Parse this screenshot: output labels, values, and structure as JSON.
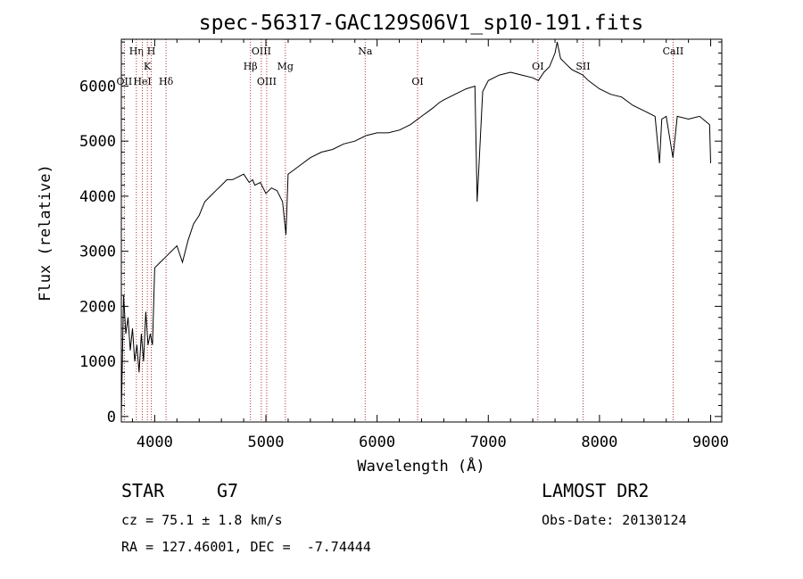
{
  "chart_data": {
    "type": "line",
    "title": "spec-56317-GAC129S06V1_sp10-191.fits",
    "xlabel": "Wavelength (Å)",
    "ylabel": "Flux (relative)",
    "xlim": [
      3700,
      9100
    ],
    "ylim": [
      -100,
      6850
    ],
    "xticks": [
      4000,
      5000,
      6000,
      7000,
      8000,
      9000
    ],
    "yticks": [
      0,
      1000,
      2000,
      3000,
      4000,
      5000,
      6000
    ],
    "grid": false,
    "series": [
      {
        "color": "#000000",
        "x": [
          3700,
          3720,
          3740,
          3760,
          3780,
          3800,
          3820,
          3840,
          3860,
          3880,
          3900,
          3920,
          3940,
          3960,
          3980,
          4000,
          4050,
          4100,
          4150,
          4200,
          4250,
          4300,
          4350,
          4400,
          4450,
          4500,
          4550,
          4600,
          4650,
          4700,
          4750,
          4800,
          4850,
          4880,
          4900,
          4950,
          5000,
          5050,
          5100,
          5150,
          5180,
          5200,
          5300,
          5400,
          5500,
          5600,
          5700,
          5800,
          5900,
          6000,
          6100,
          6200,
          6300,
          6400,
          6500,
          6560,
          6600,
          6700,
          6800,
          6880,
          6900,
          6950,
          7000,
          7100,
          7200,
          7300,
          7400,
          7450,
          7500,
          7550,
          7600,
          7620,
          7650,
          7700,
          7750,
          7800,
          7850,
          7900,
          8000,
          8100,
          8200,
          8300,
          8400,
          8500,
          8540,
          8560,
          8600,
          8660,
          8700,
          8800,
          8900,
          8990,
          9000
        ],
        "y": [
          0,
          2200,
          1500,
          1800,
          1200,
          1600,
          1000,
          1300,
          800,
          1500,
          1000,
          1900,
          1300,
          1500,
          1300,
          2700,
          2800,
          2900,
          3000,
          3100,
          2800,
          3200,
          3500,
          3650,
          3900,
          4000,
          4100,
          4200,
          4300,
          4300,
          4350,
          4400,
          4250,
          4300,
          4200,
          4250,
          4050,
          4150,
          4100,
          3900,
          3300,
          4400,
          4550,
          4700,
          4800,
          4850,
          4950,
          5000,
          5100,
          5150,
          5150,
          5200,
          5300,
          5450,
          5600,
          5700,
          5750,
          5850,
          5950,
          6000,
          3900,
          5900,
          6100,
          6200,
          6250,
          6200,
          6150,
          6100,
          6250,
          6350,
          6600,
          6800,
          6500,
          6400,
          6300,
          6250,
          6200,
          6100,
          5950,
          5850,
          5800,
          5650,
          5550,
          5450,
          4600,
          5400,
          5450,
          4700,
          5450,
          5400,
          5450,
          5300,
          4600
        ]
      }
    ],
    "spectral_lines": [
      {
        "label": "Hη",
        "x": 3835,
        "row": 1
      },
      {
        "label": "H",
        "x": 3969,
        "row": 1
      },
      {
        "label": "K",
        "x": 3934,
        "row": 2
      },
      {
        "label": "OII",
        "x": 3727,
        "row": 3
      },
      {
        "label": "HeI",
        "x": 3889,
        "row": 3
      },
      {
        "label": "Hδ",
        "x": 4102,
        "row": 3
      },
      {
        "label": "OIII",
        "x": 4959,
        "row": 1
      },
      {
        "label": "Hβ",
        "x": 4861,
        "row": 2
      },
      {
        "label": "Mg",
        "x": 5175,
        "row": 2
      },
      {
        "label": "OIII",
        "x": 5007,
        "row": 3
      },
      {
        "label": "Na",
        "x": 5893,
        "row": 1
      },
      {
        "label": "OI",
        "x": 6364,
        "row": 3
      },
      {
        "label": "OI",
        "x": 7446,
        "row": 2
      },
      {
        "label": "SII",
        "x": 7852,
        "row": 2
      },
      {
        "label": "CaII",
        "x": 8662,
        "row": 1
      }
    ]
  },
  "info": {
    "class_label": "STAR",
    "subclass_label": "G7",
    "survey": "LAMOST DR2",
    "cz": "cz = 75.1 ± 1.8 km/s",
    "obs_date": "Obs-Date: 20130124",
    "coords": "RA = 127.46001, DEC =  -7.74444"
  }
}
